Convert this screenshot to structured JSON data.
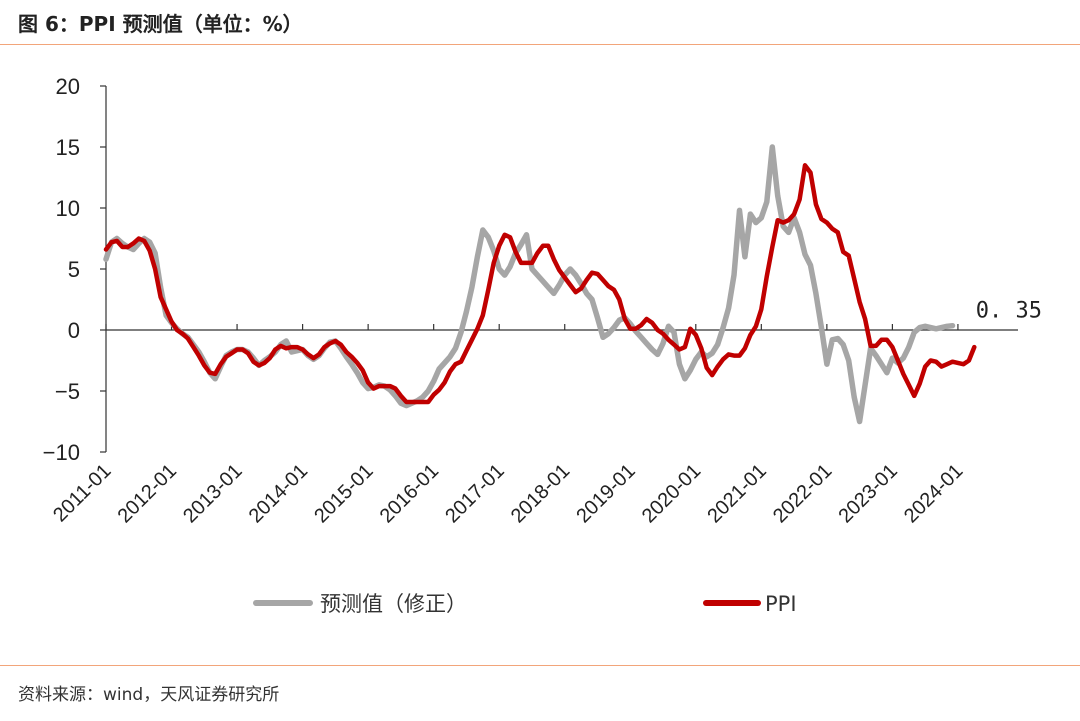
{
  "header": {
    "title": "图 6：PPI 预测值（单位：%）"
  },
  "footer": {
    "source": "资料来源：wind，天风证券研究所"
  },
  "chart_data": {
    "type": "line",
    "title": "图 6：PPI 预测值（单位：%）",
    "xlabel": "",
    "ylabel": "",
    "ylim": [
      -10,
      20
    ],
    "yticks": [
      20,
      15,
      10,
      5,
      0,
      -5,
      -10
    ],
    "ytick_labels": [
      "20",
      "15",
      "10",
      "5",
      "0",
      "−5",
      "−10"
    ],
    "xlim": [
      "2011-01",
      "2024-12"
    ],
    "xticks": [
      "2011-01",
      "2012-01",
      "2013-01",
      "2014-01",
      "2015-01",
      "2016-01",
      "2017-01",
      "2018-01",
      "2019-01",
      "2020-01",
      "2021-01",
      "2022-01",
      "2023-01",
      "2024-01"
    ],
    "grid": false,
    "legend": "bottom",
    "annotation": {
      "text": "0. 35",
      "x": "2024-12",
      "y": 0.35
    },
    "colors": {
      "forecast": "#a6a6a6",
      "ppi": "#c00000",
      "rule": "#f2a57a"
    },
    "series": [
      {
        "name": "预测值（修正）",
        "start": "2011-01",
        "values": [
          5.8,
          7.2,
          7.5,
          7.1,
          6.8,
          6.6,
          7.1,
          7.5,
          7.2,
          6.3,
          3.5,
          1.2,
          0.6,
          0.1,
          -0.3,
          -0.6,
          -1.2,
          -1.8,
          -2.6,
          -3.5,
          -4.0,
          -3.0,
          -2.1,
          -1.8,
          -1.6,
          -1.6,
          -1.8,
          -2.3,
          -2.9,
          -2.5,
          -2.2,
          -1.8,
          -1.2,
          -0.9,
          -1.8,
          -1.7,
          -1.6,
          -2.1,
          -2.4,
          -2.1,
          -1.5,
          -1.0,
          -0.9,
          -1.5,
          -2.2,
          -2.8,
          -3.5,
          -4.3,
          -4.8,
          -4.7,
          -4.5,
          -4.6,
          -4.9,
          -5.4,
          -6.0,
          -6.2,
          -6.0,
          -5.8,
          -5.5,
          -5.0,
          -4.2,
          -3.2,
          -2.7,
          -2.2,
          -1.5,
          -0.2,
          1.5,
          3.5,
          6.0,
          8.2,
          7.6,
          6.5,
          5.0,
          4.5,
          5.2,
          6.3,
          7.0,
          7.8,
          5.0,
          4.5,
          4.0,
          3.5,
          3.0,
          3.7,
          4.5,
          5.0,
          4.5,
          3.8,
          3.0,
          2.5,
          1.0,
          -0.6,
          -0.3,
          0.2,
          0.8,
          1.0,
          0.5,
          -0.1,
          -0.6,
          -1.1,
          -1.6,
          -2.0,
          -1.1,
          0.3,
          -0.2,
          -2.8,
          -4.0,
          -3.3,
          -2.4,
          -1.8,
          -2.2,
          -1.9,
          -1.2,
          0.2,
          1.8,
          4.5,
          9.8,
          6.0,
          9.5,
          8.8,
          9.2,
          10.5,
          15.0,
          11.0,
          8.5,
          8.0,
          9.2,
          8.0,
          6.2,
          5.3,
          3.0,
          0.2,
          -2.8,
          -0.8,
          -0.7,
          -1.2,
          -2.5,
          -5.5,
          -7.5,
          -4.5,
          -1.5,
          -2.1,
          -2.8,
          -3.5,
          -2.3,
          -2.7,
          -2.3,
          -1.4,
          -0.2,
          0.2,
          0.3,
          0.2,
          0.1,
          0.2,
          0.3,
          0.35
        ]
      },
      {
        "name": "PPI",
        "start": "2011-01",
        "values": [
          6.6,
          7.2,
          7.3,
          6.8,
          6.8,
          7.1,
          7.5,
          7.3,
          6.5,
          5.0,
          2.7,
          1.7,
          0.7,
          0.0,
          -0.3,
          -0.7,
          -1.4,
          -2.1,
          -2.9,
          -3.5,
          -3.6,
          -2.8,
          -2.2,
          -1.9,
          -1.6,
          -1.6,
          -1.9,
          -2.6,
          -2.9,
          -2.7,
          -2.3,
          -1.6,
          -1.3,
          -1.5,
          -1.4,
          -1.4,
          -1.6,
          -2.0,
          -2.3,
          -2.0,
          -1.4,
          -1.1,
          -0.9,
          -1.2,
          -1.8,
          -2.2,
          -2.7,
          -3.3,
          -4.3,
          -4.8,
          -4.6,
          -4.6,
          -4.6,
          -4.8,
          -5.4,
          -5.9,
          -5.9,
          -5.9,
          -5.9,
          -5.9,
          -5.3,
          -4.9,
          -4.3,
          -3.4,
          -2.8,
          -2.6,
          -1.7,
          -0.8,
          0.1,
          1.2,
          3.3,
          5.5,
          6.9,
          7.8,
          7.6,
          6.4,
          5.5,
          5.5,
          5.5,
          6.3,
          6.9,
          6.9,
          5.8,
          4.9,
          4.3,
          3.7,
          3.1,
          3.4,
          4.1,
          4.7,
          4.6,
          4.1,
          3.6,
          3.3,
          2.5,
          0.9,
          0.1,
          0.1,
          0.4,
          0.9,
          0.6,
          0.0,
          -0.3,
          -0.8,
          -1.2,
          -1.6,
          -1.4,
          0.1,
          -0.4,
          -1.5,
          -3.1,
          -3.7,
          -3.0,
          -2.4,
          -2.0,
          -2.1,
          -2.1,
          -1.5,
          -0.4,
          0.3,
          1.7,
          4.4,
          6.8,
          9.0,
          8.8,
          9.0,
          9.5,
          10.7,
          13.5,
          12.9,
          10.3,
          9.1,
          8.8,
          8.3,
          8.0,
          6.4,
          6.1,
          4.2,
          2.3,
          0.9,
          -1.3,
          -1.3,
          -0.8,
          -0.8,
          -1.4,
          -2.5,
          -3.6,
          -4.5,
          -5.4,
          -4.4,
          -3.0,
          -2.5,
          -2.6,
          -3.0,
          -2.8,
          -2.6,
          -2.7,
          -2.8,
          -2.5,
          -1.4
        ]
      }
    ]
  }
}
